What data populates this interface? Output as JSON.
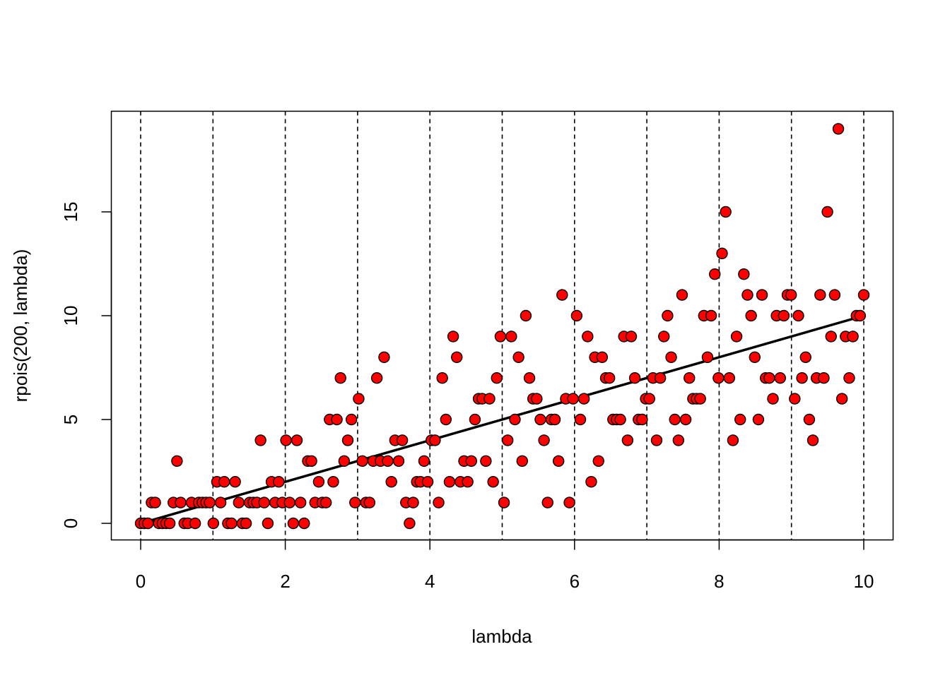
{
  "chart_data": {
    "type": "scatter",
    "title": "",
    "xlabel": "lambda",
    "ylabel": "rpois(200, lambda)",
    "xlim": [
      0,
      10
    ],
    "ylim": [
      0,
      19
    ],
    "x_ticks": [
      "0",
      "2",
      "4",
      "6",
      "8",
      "10"
    ],
    "y_ticks": [
      "0",
      "5",
      "10",
      "15"
    ],
    "vlines": [
      0,
      1,
      2,
      3,
      4,
      5,
      6,
      7,
      8,
      9,
      10
    ],
    "line": {
      "x": [
        0,
        10
      ],
      "y": [
        0,
        10
      ],
      "color": "#000000"
    },
    "point_color": "#ff0000",
    "point_stroke": "#000000",
    "grid": false,
    "legend": "none",
    "series": [
      {
        "values": [
          0,
          0,
          0,
          1,
          1,
          0,
          0,
          0,
          0,
          1,
          3,
          1,
          0,
          0,
          1,
          0,
          1,
          1,
          1,
          1,
          0,
          2,
          1,
          2,
          0,
          0,
          2,
          1,
          0,
          0,
          1,
          1,
          1,
          4,
          1,
          0,
          2,
          1,
          2,
          1,
          4,
          1,
          0,
          4,
          1,
          0,
          3,
          3,
          1,
          2,
          1,
          1,
          5,
          2,
          5,
          7,
          3,
          4,
          5,
          1,
          6,
          3,
          1,
          1,
          3,
          7,
          3,
          8,
          3,
          2,
          4,
          3,
          4,
          1,
          0,
          1,
          2,
          2,
          3,
          2,
          4,
          4,
          1,
          7,
          5,
          2,
          9,
          8,
          2,
          3,
          2,
          3,
          5,
          6,
          6,
          3,
          6,
          2,
          7,
          9,
          1,
          4,
          9,
          5,
          8,
          3,
          10,
          7,
          6,
          6,
          5,
          4,
          1,
          5,
          5,
          3,
          11,
          6,
          1,
          6,
          10,
          5,
          6,
          9,
          2,
          8,
          3,
          8,
          7,
          7,
          5,
          5,
          5,
          9,
          4,
          9,
          7,
          5,
          5,
          6,
          6,
          7,
          4,
          7,
          9,
          10,
          8,
          5,
          4,
          11,
          5,
          7,
          6,
          6,
          6,
          10,
          8,
          10,
          12,
          7,
          13,
          15,
          7,
          4,
          9,
          5,
          12,
          11,
          10,
          8,
          5,
          11,
          7,
          7,
          6,
          10,
          7,
          10,
          11,
          11,
          6,
          10,
          7,
          8,
          5,
          4,
          7,
          11,
          7,
          15,
          9,
          11,
          19,
          6,
          9,
          7,
          9,
          10,
          10,
          11
        ]
      }
    ]
  }
}
